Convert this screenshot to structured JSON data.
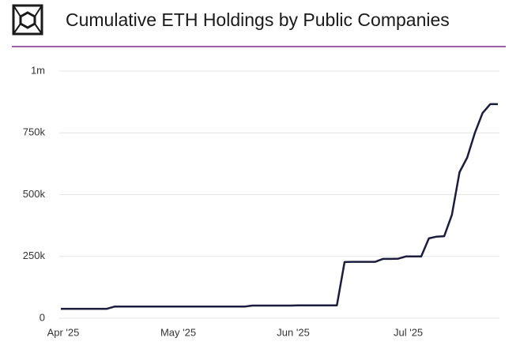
{
  "chart_data": {
    "type": "line",
    "title": "Cumulative ETH Holdings by Public Companies",
    "categories": [
      "Apr '25",
      null,
      null,
      null,
      null,
      null,
      null,
      null,
      null,
      null,
      null,
      null,
      null,
      null,
      null,
      "May '25",
      null,
      null,
      null,
      null,
      null,
      null,
      null,
      null,
      null,
      null,
      null,
      null,
      null,
      null,
      "Jun '25",
      null,
      null,
      null,
      null,
      null,
      null,
      null,
      null,
      null,
      null,
      null,
      null,
      null,
      null,
      "Jul '25",
      null,
      null,
      null,
      null,
      null,
      null,
      null,
      null,
      null,
      null,
      null,
      null
    ],
    "values": [
      38000,
      38000,
      38000,
      38000,
      38000,
      38000,
      38000,
      47000,
      47000,
      47000,
      47000,
      47000,
      47000,
      47000,
      47000,
      47000,
      47000,
      47000,
      47000,
      47000,
      47000,
      47000,
      47000,
      47000,
      47000,
      51000,
      51000,
      51000,
      51000,
      51000,
      51000,
      52000,
      52000,
      52000,
      52000,
      52000,
      52000,
      227000,
      228000,
      228000,
      228000,
      228000,
      240000,
      240000,
      241000,
      250000,
      250000,
      250000,
      323000,
      330000,
      332000,
      418000,
      591000,
      650000,
      750000,
      830000,
      866000,
      866000
    ],
    "color": "#1c1c3c",
    "ylim": [
      0,
      1000000
    ],
    "yticks": [
      {
        "value": 0,
        "label": "0"
      },
      {
        "value": 250000,
        "label": "250k"
      },
      {
        "value": 500000,
        "label": "500k"
      },
      {
        "value": 750000,
        "label": "750k"
      },
      {
        "value": 1000000,
        "label": "1m"
      }
    ],
    "grid": true
  }
}
